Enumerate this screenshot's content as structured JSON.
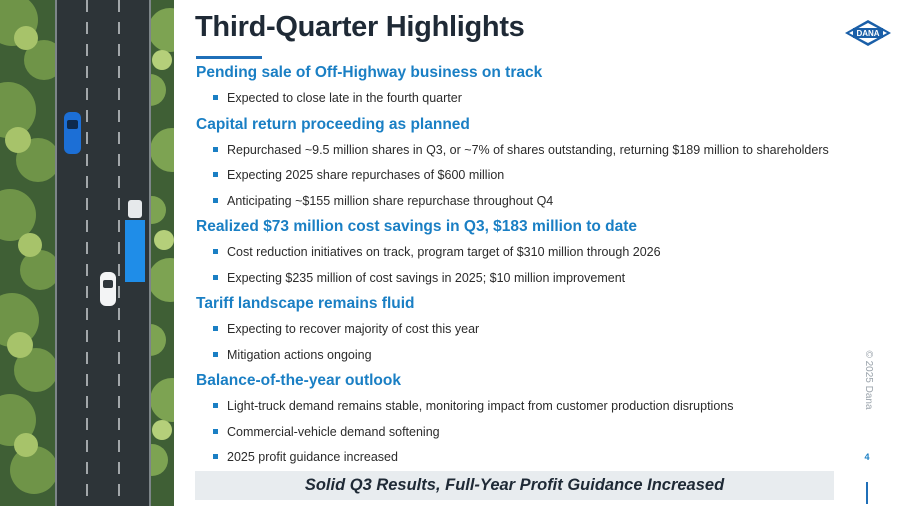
{
  "slide": {
    "title": "Third-Quarter Highlights",
    "logo_text": "DANA",
    "sections": [
      {
        "heading": "Pending sale of Off-Highway business on track",
        "bullets": [
          "Expected to close late in the fourth quarter"
        ]
      },
      {
        "heading": "Capital return proceeding as planned",
        "bullets": [
          "Repurchased ~9.5 million shares in Q3, or ~7% of shares outstanding, returning $189 million to shareholders",
          "Expecting 2025 share repurchases of $600 million",
          "Anticipating ~$155 million share repurchase throughout Q4"
        ]
      },
      {
        "heading": "Realized $73 million cost savings in Q3, $183 million to date",
        "bullets": [
          "Cost reduction initiatives on track, program target of $310 million through 2026",
          "Expecting $235 million of cost savings in 2025; $10 million improvement"
        ]
      },
      {
        "heading": "Tariff landscape remains fluid",
        "bullets": [
          "Expecting to recover majority of cost this year",
          "Mitigation actions ongoing"
        ]
      },
      {
        "heading": "Balance-of-the-year outlook",
        "bullets": [
          "Light-truck demand remains stable, monitoring impact from customer production disruptions",
          "Commercial-vehicle demand softening",
          "2025 profit guidance increased"
        ]
      }
    ],
    "banner": "Solid Q3 Results, Full-Year Profit Guidance Increased",
    "copyright": "© 2025 Dana",
    "page_number": "4"
  },
  "colors": {
    "accent": "#1a7fc4",
    "title": "#1f2a36",
    "banner_bg": "#e8ecef"
  }
}
